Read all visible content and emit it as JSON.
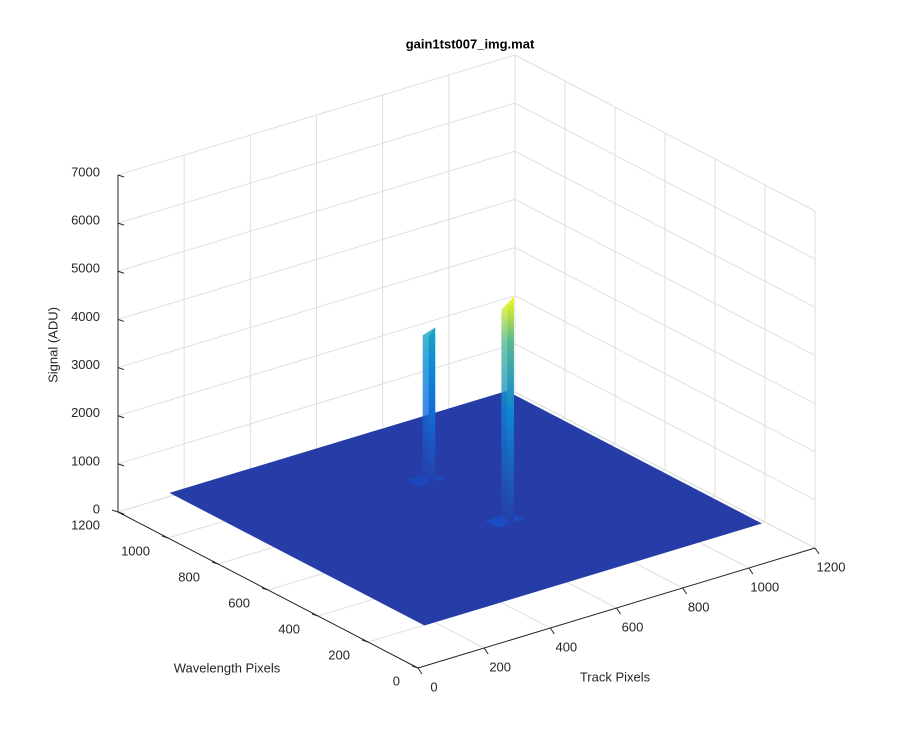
{
  "chart_data": {
    "type": "surface",
    "title": "gain1tst007_img.mat",
    "xlabel": "Track Pixels",
    "ylabel": "Wavelength Pixels",
    "zlabel": "Signal (ADU)",
    "xlim": [
      0,
      1200
    ],
    "ylim": [
      0,
      1200
    ],
    "zlim": [
      0,
      7000
    ],
    "xticks": [
      0,
      200,
      400,
      600,
      800,
      1000,
      1200
    ],
    "yticks": [
      0,
      200,
      400,
      600,
      800,
      1000,
      1200
    ],
    "zticks": [
      0,
      1000,
      2000,
      3000,
      4000,
      5000,
      6000,
      7000
    ],
    "grid": true,
    "surface": {
      "x": [
        80,
        1100
      ],
      "y": [
        80,
        1100
      ],
      "z": 500
    },
    "peaks": [
      {
        "x": 620,
        "y": 790,
        "z": 3700
      },
      {
        "x": 620,
        "y": 475,
        "z": 5200
      }
    ]
  }
}
